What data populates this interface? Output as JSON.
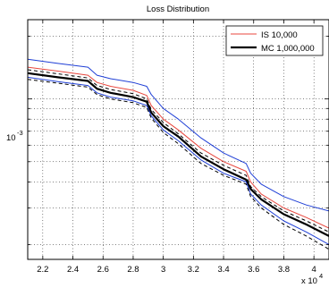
{
  "chart_data": {
    "type": "line",
    "title": "Loss Distribution",
    "xlabel": "",
    "ylabel": "",
    "x_exponent_label": "x 10",
    "x_exponent_power": "4",
    "xlim": [
      21000,
      41000
    ],
    "x_ticks": [
      2.2,
      2.4,
      2.6,
      2.8,
      3.0,
      3.2,
      3.4,
      3.6,
      3.8,
      4.0
    ],
    "x_tick_labels": [
      "2.2",
      "2.4",
      "2.6",
      "2.8",
      "3",
      "3.2",
      "3.4",
      "3.6",
      "3.8",
      "4"
    ],
    "y_scale": "log",
    "ylim": [
      0.00017,
      0.0024
    ],
    "y_tick_label_base": "10",
    "y_tick_label_power": "-3",
    "grid": true,
    "legend_position": "top-right",
    "legend": [
      {
        "label": "IS 10,000",
        "color": "#e8473e",
        "width": 1
      },
      {
        "label": "MC 1,000,000",
        "color": "#000000",
        "width": 2.2
      }
    ],
    "series": [
      {
        "color": "#1f3fd6",
        "width": 1,
        "dash": "",
        "x": [
          21000,
          23000,
          25000,
          25600,
          26500,
          28000,
          28900,
          29200,
          30000,
          31000,
          32500,
          34000,
          35500,
          35800,
          36500,
          38000,
          39500,
          41000
        ],
        "y": [
          0.00155,
          0.00148,
          0.00142,
          0.0013,
          0.00125,
          0.0012,
          0.00115,
          0.00105,
          0.0009,
          0.0008,
          0.00065,
          0.00055,
          0.00049,
          0.00044,
          0.00039,
          0.00034,
          0.00031,
          0.00029
        ]
      },
      {
        "color": "#e8473e",
        "width": 1,
        "dash": "",
        "x": [
          21000,
          23000,
          25000,
          25600,
          26500,
          28000,
          28900,
          29200,
          30000,
          31000,
          32500,
          34000,
          35500,
          35800,
          36500,
          38000,
          39500,
          41000
        ],
        "y": [
          0.00142,
          0.00136,
          0.0013,
          0.0012,
          0.00115,
          0.0011,
          0.00104,
          0.00093,
          0.0008,
          0.00071,
          0.00058,
          0.0005,
          0.00045,
          0.0004,
          0.00035,
          0.0003,
          0.00027,
          0.00024
        ]
      },
      {
        "color": "#000000",
        "width": 1,
        "dash": "4,3",
        "x": [
          21000,
          23000,
          25000,
          25600,
          26500,
          28000,
          28900,
          29200,
          30000,
          31000,
          32500,
          34000,
          35500,
          35800,
          36500,
          38000,
          39500,
          41000
        ],
        "y": [
          0.00138,
          0.00132,
          0.00126,
          0.00116,
          0.00111,
          0.00106,
          0.001,
          0.00089,
          0.00077,
          0.00068,
          0.00055,
          0.00048,
          0.00043,
          0.00038,
          0.00034,
          0.00029,
          0.00026,
          0.00023
        ]
      },
      {
        "color": "#000000",
        "width": 2.2,
        "dash": "",
        "x": [
          21000,
          23000,
          25000,
          25600,
          26500,
          28000,
          28900,
          29200,
          30000,
          31000,
          32500,
          34000,
          35500,
          35800,
          36500,
          38000,
          39500,
          41000
        ],
        "y": [
          0.00133,
          0.00127,
          0.00122,
          0.00112,
          0.00107,
          0.00102,
          0.00097,
          0.00086,
          0.00074,
          0.00066,
          0.00053,
          0.00046,
          0.00041,
          0.00037,
          0.00033,
          0.00028,
          0.00025,
          0.00022
        ]
      },
      {
        "color": "#1f3fd6",
        "width": 1,
        "dash": "",
        "x": [
          21000,
          23000,
          25000,
          25600,
          26500,
          28000,
          28900,
          29200,
          30000,
          31000,
          32500,
          34000,
          35500,
          35800,
          36500,
          38000,
          39500,
          41000
        ],
        "y": [
          0.00127,
          0.00121,
          0.00116,
          0.00107,
          0.00102,
          0.00098,
          0.00093,
          0.00083,
          0.00071,
          0.00063,
          0.00051,
          0.00044,
          0.0004,
          0.00035,
          0.00031,
          0.00026,
          0.00023,
          0.0002
        ]
      },
      {
        "color": "#000000",
        "width": 1,
        "dash": "4,3",
        "x": [
          21000,
          23000,
          25000,
          25600,
          26500,
          28000,
          28900,
          29200,
          30000,
          31000,
          32500,
          34000,
          35500,
          35800,
          36500,
          38000,
          39500,
          41000
        ],
        "y": [
          0.00124,
          0.00119,
          0.00114,
          0.00105,
          0.001,
          0.00096,
          0.00091,
          0.00081,
          0.00069,
          0.00061,
          0.00049,
          0.00043,
          0.00039,
          0.00034,
          0.0003,
          0.00025,
          0.00022,
          0.00019
        ]
      }
    ]
  }
}
